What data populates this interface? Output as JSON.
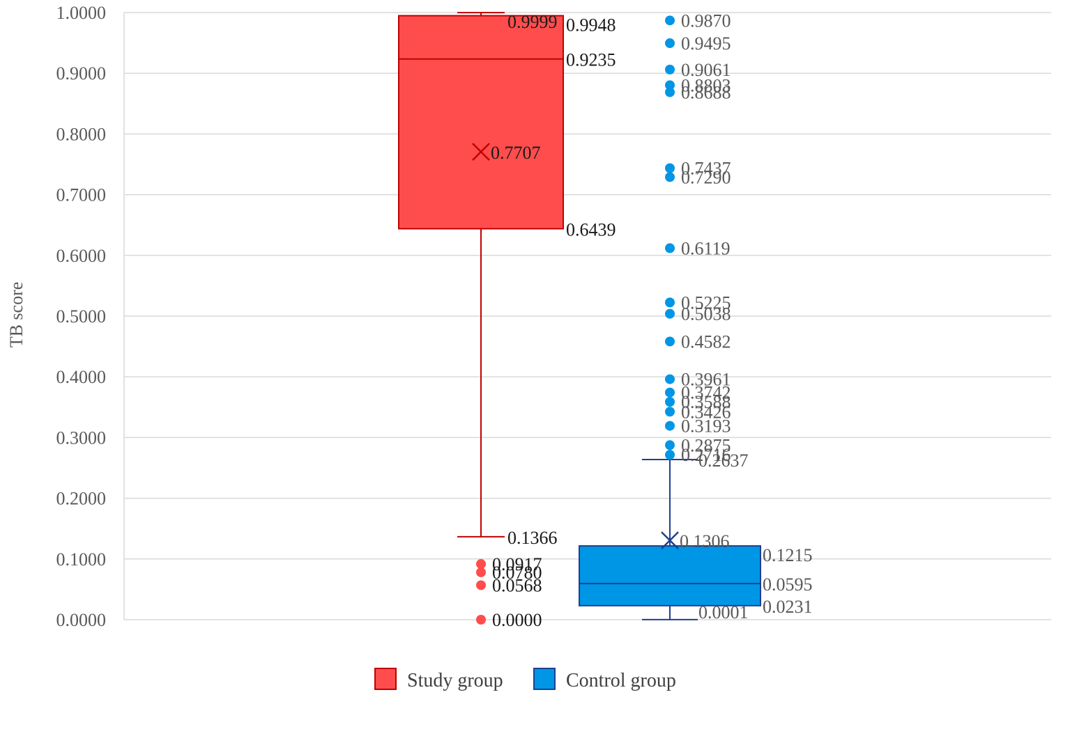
{
  "chart_data": {
    "type": "boxplot",
    "ylabel": "TB score",
    "ylim": [
      0,
      1
    ],
    "yticks": [
      "0.0000",
      "0.1000",
      "0.2000",
      "0.3000",
      "0.4000",
      "0.5000",
      "0.6000",
      "0.7000",
      "0.8000",
      "0.9000",
      "1.0000"
    ],
    "grid": true,
    "legend_position": "bottom",
    "series": [
      {
        "name": "Study group",
        "color": "#ff4d4d",
        "edge_color": "#c00000",
        "whisker_low": 0.1366,
        "q1": 0.6439,
        "median": 0.9235,
        "q3": 0.9948,
        "whisker_high": 0.9999,
        "mean": 0.7707,
        "outliers": [
          0.0917,
          0.078,
          0.0568,
          0.0
        ],
        "labels": {
          "whisker_low": "0.1366",
          "q1": "0.6439",
          "median": "0.9235",
          "q3": "0.9948",
          "whisker_high": "0.9999",
          "mean": "0.7707",
          "outliers": [
            "0.0917",
            "0.0780",
            "0.0568",
            "0.0000"
          ]
        }
      },
      {
        "name": "Control group",
        "color": "#0096e6",
        "edge_color": "#1f3f8f",
        "whisker_low": 0.0001,
        "q1": 0.0231,
        "median": 0.0595,
        "q3": 0.1215,
        "whisker_high": 0.2637,
        "mean": 0.1306,
        "outliers": [
          0.987,
          0.9495,
          0.9061,
          0.8803,
          0.8688,
          0.7437,
          0.729,
          0.6119,
          0.5225,
          0.5038,
          0.4582,
          0.3961,
          0.3742,
          0.3588,
          0.3426,
          0.3193,
          0.2875,
          0.2716
        ],
        "labels": {
          "whisker_low": "0.0001",
          "q1": "0.0231",
          "median": "0.0595",
          "q3": "0.1215",
          "whisker_high": "0.2637",
          "mean": "0.1306",
          "outliers": [
            "0.9870",
            "0.9495",
            "0.9061",
            "0.8803",
            "0.8688",
            "0.7437",
            "0.7290",
            "0.6119",
            "0.5225",
            "0.5038",
            "0.4582",
            "0.3961",
            "0.3742",
            "0.3588",
            "0.3426",
            "0.3193",
            "0.2875",
            "0.2716"
          ]
        }
      }
    ]
  }
}
